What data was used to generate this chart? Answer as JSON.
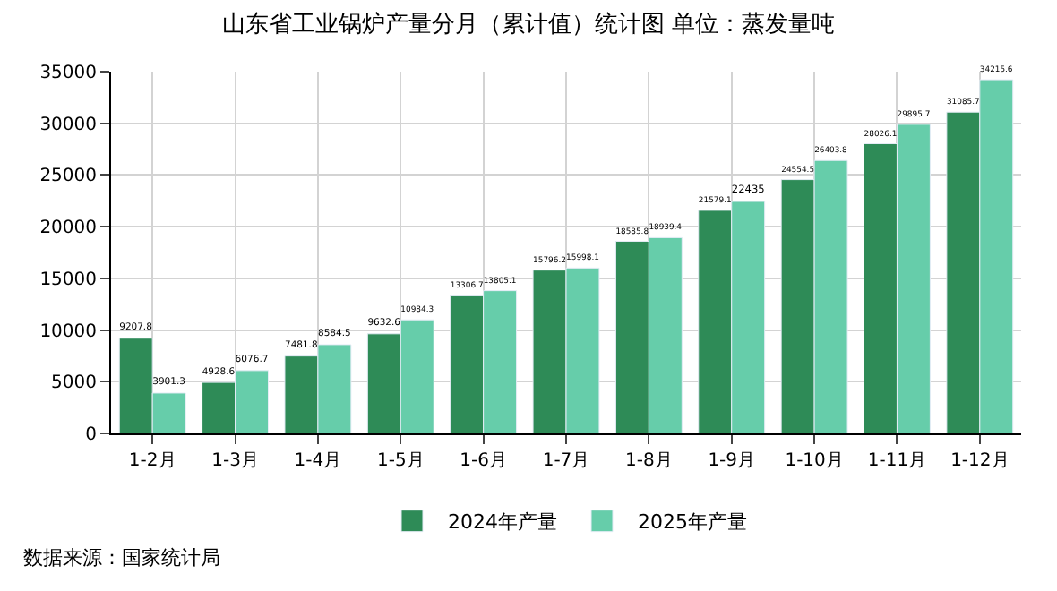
{
  "chart_data": {
    "type": "bar",
    "title": "山东省工业锅炉产量分月（累计值）统计图 单位：蒸发量吨",
    "categories": [
      "1-2月",
      "1-3月",
      "1-4月",
      "1-5月",
      "1-6月",
      "1-7月",
      "1-8月",
      "1-9月",
      "1-10月",
      "1-11月",
      "1-12月"
    ],
    "series": [
      {
        "name": "2024年产量",
        "color": "#2e8b57",
        "values": [
          9207.8,
          4928.6,
          7481.8,
          9632.6,
          13306.7,
          15796.2,
          18585.8,
          21579.1,
          24554.5,
          28026.1,
          31085.7
        ]
      },
      {
        "name": "2025年产量",
        "color": "#66cdaa",
        "values": [
          3901.3,
          6076.7,
          8584.5,
          10984.3,
          13805.1,
          15998.1,
          18939.4,
          22435,
          26403.8,
          29895.7,
          34215.6
        ]
      }
    ],
    "ylim": [
      0,
      35000
    ],
    "yticks": [
      0,
      5000,
      10000,
      15000,
      20000,
      25000,
      30000,
      35000
    ],
    "grid": true,
    "legend": "bottom",
    "data_labels": true,
    "annotations": [
      "数据来源：国家统计局"
    ]
  }
}
